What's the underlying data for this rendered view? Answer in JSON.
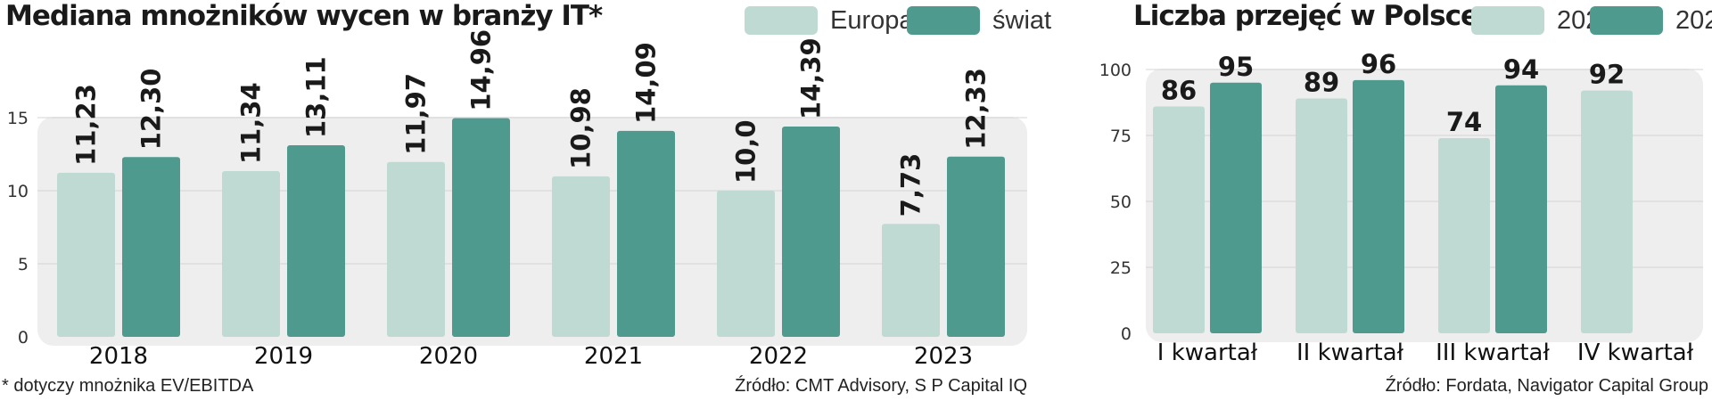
{
  "colors": {
    "europa": "#bfdad3",
    "swiat": "#4e9a8e",
    "plot_bg": "#eeeeee",
    "grid": "#d4d4d4"
  },
  "chart_data": [
    {
      "type": "bar",
      "title": "Mediana mnożników wycen w branży IT*",
      "categories": [
        "2018",
        "2019",
        "2020",
        "2021",
        "2022",
        "2023"
      ],
      "series": [
        {
          "name": "Europa",
          "values": [
            11.23,
            11.34,
            11.97,
            10.98,
            10.0,
            7.73
          ],
          "labels": [
            "11,23",
            "11,34",
            "11,97",
            "10,98",
            "10,0",
            "7,73"
          ]
        },
        {
          "name": "świat",
          "values": [
            12.3,
            13.11,
            14.96,
            14.09,
            14.39,
            12.33
          ],
          "labels": [
            "12,30",
            "13,11",
            "14,96",
            "14,09",
            "14,39",
            "12,33"
          ]
        }
      ],
      "ylim": [
        0,
        15
      ],
      "yticks": [
        0,
        5,
        10,
        15
      ],
      "grid": true,
      "legend": "top-right",
      "footnote": "* dotyczy mnożnika EV/EBITDA",
      "source": "Źródło: CMT Advisory, S P Capital IQ"
    },
    {
      "type": "bar",
      "title": "Liczba przejęć w Polsce",
      "categories": [
        "I kwartał",
        "II kwartał",
        "III kwartał",
        "IV kwartał"
      ],
      "series": [
        {
          "name": "2022",
          "values": [
            86,
            89,
            74,
            92
          ],
          "labels": [
            "86",
            "89",
            "74",
            "92"
          ]
        },
        {
          "name": "2023",
          "values": [
            95,
            96,
            94,
            null
          ],
          "labels": [
            "95",
            "96",
            "94",
            ""
          ]
        }
      ],
      "ylim": [
        0,
        100
      ],
      "yticks": [
        0,
        25,
        50,
        75,
        100
      ],
      "grid": true,
      "legend": "top-right",
      "source": "Źródło: Fordata, Navigator Capital Group"
    }
  ]
}
